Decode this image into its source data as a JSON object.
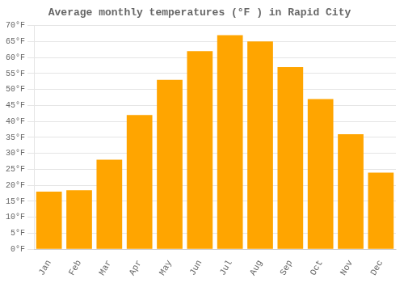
{
  "chart_data": {
    "type": "bar",
    "title": "Average monthly temperatures (°F ) in Rapid City",
    "categories": [
      "Jan",
      "Feb",
      "Mar",
      "Apr",
      "May",
      "Jun",
      "Jul",
      "Aug",
      "Sep",
      "Oct",
      "Nov",
      "Dec"
    ],
    "values": [
      18,
      18.5,
      28,
      42,
      53,
      62,
      67,
      65,
      57,
      47,
      36,
      24
    ],
    "color": "#FFA500",
    "ylim": [
      0,
      70
    ],
    "yticks": [
      {
        "value": 0,
        "label": "0°F"
      },
      {
        "value": 5,
        "label": "5°F"
      },
      {
        "value": 10,
        "label": "10°F"
      },
      {
        "value": 15,
        "label": "15°F"
      },
      {
        "value": 20,
        "label": "20°F"
      },
      {
        "value": 25,
        "label": "25°F"
      },
      {
        "value": 30,
        "label": "30°F"
      },
      {
        "value": 35,
        "label": "35°F"
      },
      {
        "value": 40,
        "label": "40°F"
      },
      {
        "value": 45,
        "label": "45°F"
      },
      {
        "value": 50,
        "label": "50°F"
      },
      {
        "value": 55,
        "label": "55°F"
      },
      {
        "value": 60,
        "label": "60°F"
      },
      {
        "value": 65,
        "label": "65°F"
      },
      {
        "value": 70,
        "label": "70°F"
      }
    ],
    "grid": true
  }
}
